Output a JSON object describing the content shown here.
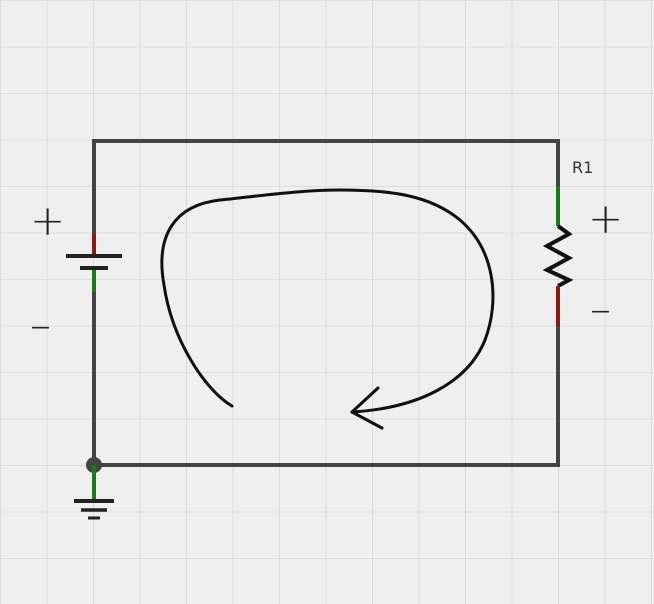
{
  "components": {
    "battery": {
      "plus": "+",
      "minus": "–"
    },
    "resistor": {
      "name": "R1",
      "plus": "+",
      "minus": "–"
    }
  },
  "colors": {
    "wire": "#444444",
    "pin_positive": "#8b1a1a",
    "pin_negative": "#1c7a1c",
    "arrow": "#111111",
    "grid": "#dcdcdc",
    "background": "#efefef"
  }
}
